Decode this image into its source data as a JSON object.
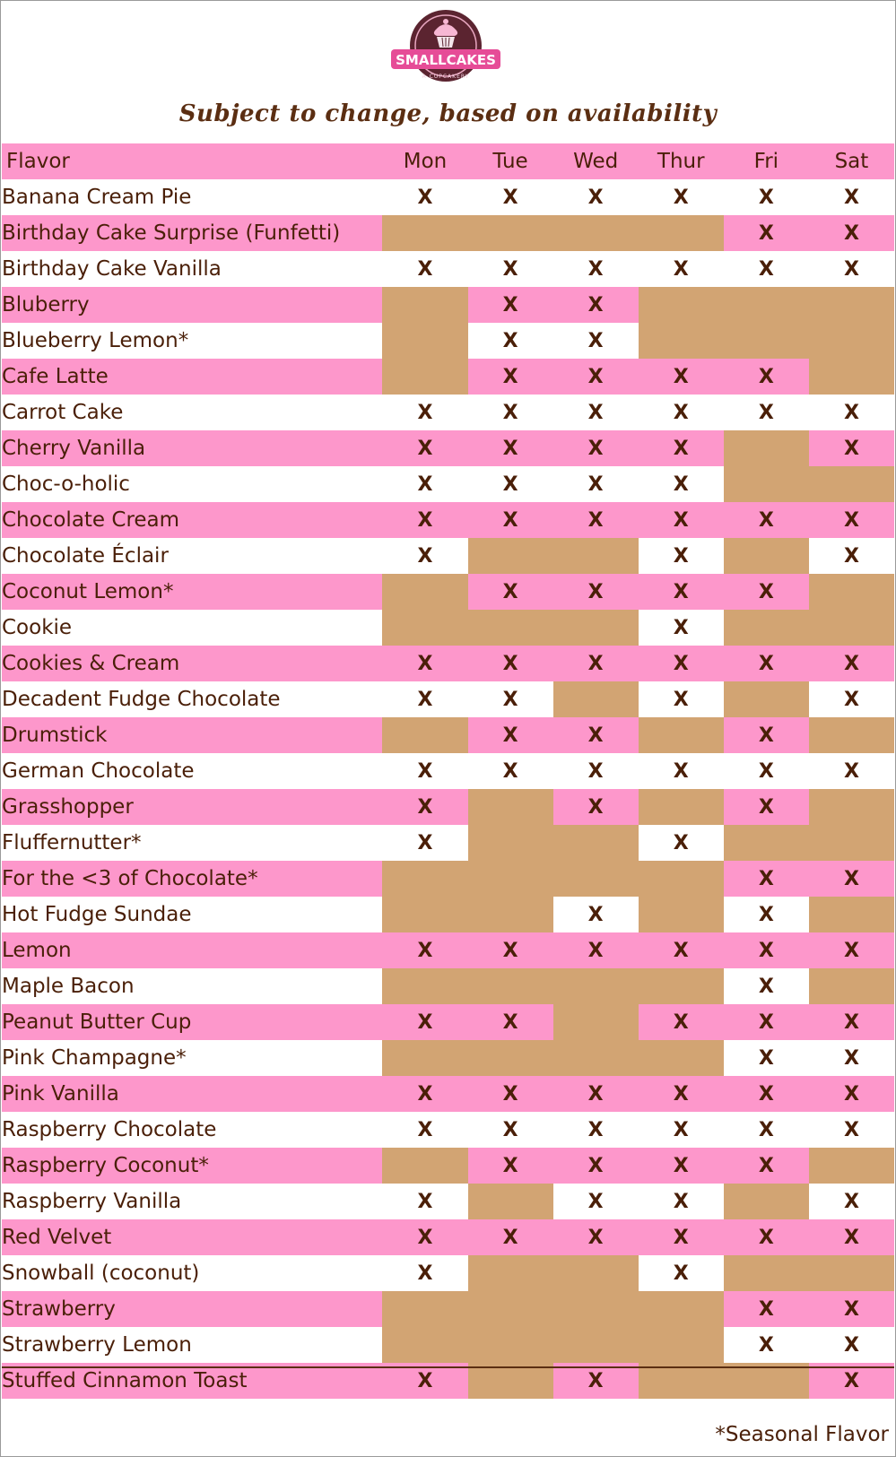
{
  "logo": {
    "name": "SMALLCAKES",
    "tagline": "A CUPCAKERY"
  },
  "subtitle": "Subject to change, based on availability",
  "table": {
    "headers": [
      "Flavor",
      "Mon",
      "Tue",
      "Wed",
      "Thur",
      "Fri",
      "Sat"
    ],
    "mark": "X",
    "rows": [
      {
        "flavor": "Banana Cream Pie",
        "days": [
          1,
          1,
          1,
          1,
          1,
          1
        ]
      },
      {
        "flavor": "Birthday Cake Surprise (Funfetti)",
        "days": [
          0,
          0,
          0,
          0,
          1,
          1
        ]
      },
      {
        "flavor": "Birthday Cake Vanilla",
        "days": [
          1,
          1,
          1,
          1,
          1,
          1
        ]
      },
      {
        "flavor": "Bluberry",
        "days": [
          0,
          1,
          1,
          0,
          0,
          0
        ]
      },
      {
        "flavor": "Blueberry Lemon*",
        "days": [
          0,
          1,
          1,
          0,
          0,
          0
        ]
      },
      {
        "flavor": "Cafe Latte",
        "days": [
          0,
          1,
          1,
          1,
          1,
          0
        ]
      },
      {
        "flavor": "Carrot Cake",
        "days": [
          1,
          1,
          1,
          1,
          1,
          1
        ]
      },
      {
        "flavor": "Cherry Vanilla",
        "days": [
          1,
          1,
          1,
          1,
          0,
          1
        ]
      },
      {
        "flavor": "Choc-o-holic",
        "days": [
          1,
          1,
          1,
          1,
          0,
          0
        ]
      },
      {
        "flavor": "Chocolate Cream",
        "days": [
          1,
          1,
          1,
          1,
          1,
          1
        ]
      },
      {
        "flavor": "Chocolate Éclair",
        "days": [
          1,
          0,
          0,
          1,
          0,
          1
        ]
      },
      {
        "flavor": "Coconut Lemon*",
        "days": [
          0,
          1,
          1,
          1,
          1,
          0
        ]
      },
      {
        "flavor": "Cookie",
        "days": [
          0,
          0,
          0,
          1,
          0,
          0
        ]
      },
      {
        "flavor": "Cookies & Cream",
        "days": [
          1,
          1,
          1,
          1,
          1,
          1
        ]
      },
      {
        "flavor": "Decadent Fudge Chocolate",
        "days": [
          1,
          1,
          0,
          1,
          0,
          1
        ]
      },
      {
        "flavor": "Drumstick",
        "days": [
          0,
          1,
          1,
          0,
          1,
          0
        ]
      },
      {
        "flavor": "German Chocolate",
        "days": [
          1,
          1,
          1,
          1,
          1,
          1
        ]
      },
      {
        "flavor": "Grasshopper",
        "days": [
          1,
          0,
          1,
          0,
          1,
          0
        ]
      },
      {
        "flavor": "Fluffernutter*",
        "days": [
          1,
          0,
          0,
          1,
          0,
          0
        ]
      },
      {
        "flavor": "For the <3 of Chocolate*",
        "days": [
          0,
          0,
          0,
          0,
          1,
          1
        ]
      },
      {
        "flavor": "Hot Fudge Sundae",
        "days": [
          0,
          0,
          1,
          0,
          1,
          0
        ]
      },
      {
        "flavor": "Lemon",
        "days": [
          1,
          1,
          1,
          1,
          1,
          1
        ]
      },
      {
        "flavor": "Maple Bacon",
        "days": [
          0,
          0,
          0,
          0,
          1,
          0
        ]
      },
      {
        "flavor": "Peanut Butter Cup",
        "days": [
          1,
          1,
          0,
          1,
          1,
          1
        ]
      },
      {
        "flavor": "Pink Champagne*",
        "days": [
          0,
          0,
          0,
          0,
          1,
          1
        ]
      },
      {
        "flavor": "Pink Vanilla",
        "days": [
          1,
          1,
          1,
          1,
          1,
          1
        ]
      },
      {
        "flavor": "Raspberry Chocolate",
        "days": [
          1,
          1,
          1,
          1,
          1,
          1
        ]
      },
      {
        "flavor": "Raspberry Coconut*",
        "days": [
          0,
          1,
          1,
          1,
          1,
          0
        ]
      },
      {
        "flavor": "Raspberry Vanilla",
        "days": [
          1,
          0,
          1,
          1,
          0,
          1
        ]
      },
      {
        "flavor": "Red Velvet",
        "days": [
          1,
          1,
          1,
          1,
          1,
          1
        ]
      },
      {
        "flavor": "Snowball (coconut)",
        "days": [
          1,
          0,
          0,
          1,
          0,
          0
        ]
      },
      {
        "flavor": "Strawberry",
        "days": [
          0,
          0,
          0,
          0,
          1,
          1
        ]
      },
      {
        "flavor": "Strawberry Lemon",
        "days": [
          0,
          0,
          0,
          0,
          1,
          1
        ]
      },
      {
        "flavor": "Stuffed Cinnamon Toast",
        "days": [
          1,
          0,
          1,
          0,
          0,
          1
        ]
      }
    ]
  },
  "footnote": "*Seasonal Flavor",
  "colors": {
    "pink_row": "#fd97cb",
    "unavailable": "#d2a473",
    "text_brown": "#4a1f08",
    "logo_maroon": "#5b2430"
  },
  "icons": [
    "cupcake-icon"
  ]
}
